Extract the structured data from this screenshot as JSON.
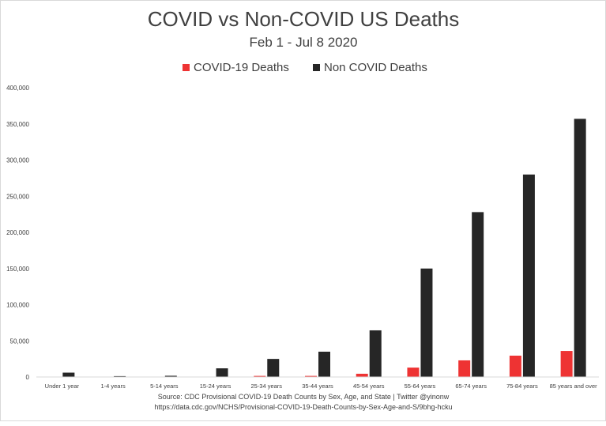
{
  "chart_data": {
    "type": "bar",
    "title": "COVID vs Non-COVID US Deaths",
    "subtitle": "Feb 1 - Jul 8 2020",
    "xlabel": "",
    "ylabel": "",
    "ylim": [
      0,
      400000
    ],
    "yticks": [
      0,
      50000,
      100000,
      150000,
      200000,
      250000,
      300000,
      350000,
      400000
    ],
    "ytick_labels": [
      "0",
      "50,000",
      "100,000",
      "150,000",
      "200,000",
      "250,000",
      "300,000",
      "350,000",
      "400,000"
    ],
    "grid": false,
    "legend_position": "top-center",
    "categories": [
      "Under 1 year",
      "1-4 years",
      "5-14 years",
      "15-24 years",
      "25-34 years",
      "35-44 years",
      "45-54 years",
      "55-64 years",
      "65-74 years",
      "75-84 years",
      "85 years and over"
    ],
    "series": [
      {
        "name": "COVID-19 Deaths",
        "color": "#ee3333",
        "values": [
          10,
          10,
          20,
          300,
          1500,
          1500,
          4500,
          13000,
          23000,
          29500,
          36000
        ]
      },
      {
        "name": "Non COVID Deaths",
        "color": "#262626",
        "values": [
          6000,
          1200,
          1700,
          12000,
          25000,
          35000,
          64500,
          150000,
          228000,
          280000,
          357000
        ]
      }
    ]
  },
  "source_lines": [
    "Source: CDC Provisional COVID-19 Death Counts by Sex, Age, and State | Twitter @yinonw",
    "https://data.cdc.gov/NCHS/Provisional-COVID-19-Death-Counts-by-Sex-Age-and-S/9bhg-hcku"
  ]
}
